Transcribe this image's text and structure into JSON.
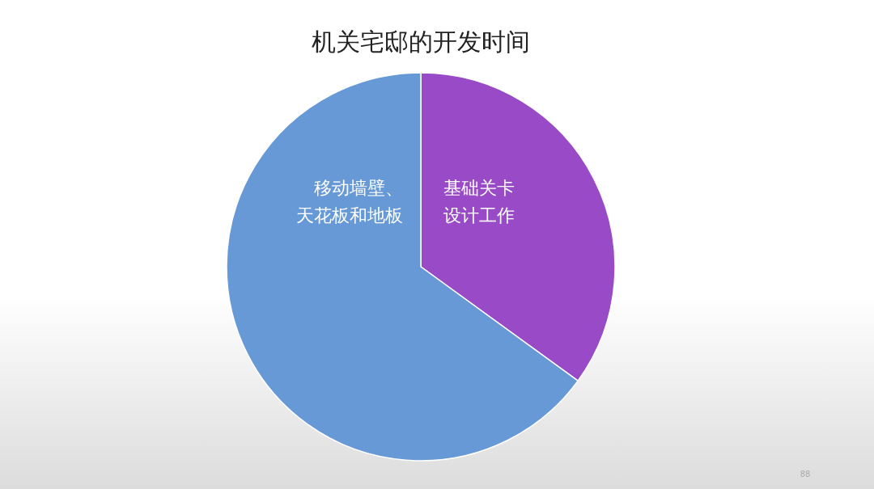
{
  "chart_data": {
    "type": "pie",
    "title": "机关宅邸的开发时间",
    "categories": [
      "基础关卡设计工作",
      "移动墙壁、天花板和地板"
    ],
    "values": [
      35,
      65
    ],
    "colors": [
      "#994ac6",
      "#6699d6"
    ],
    "annotations": [
      "88"
    ]
  }
}
